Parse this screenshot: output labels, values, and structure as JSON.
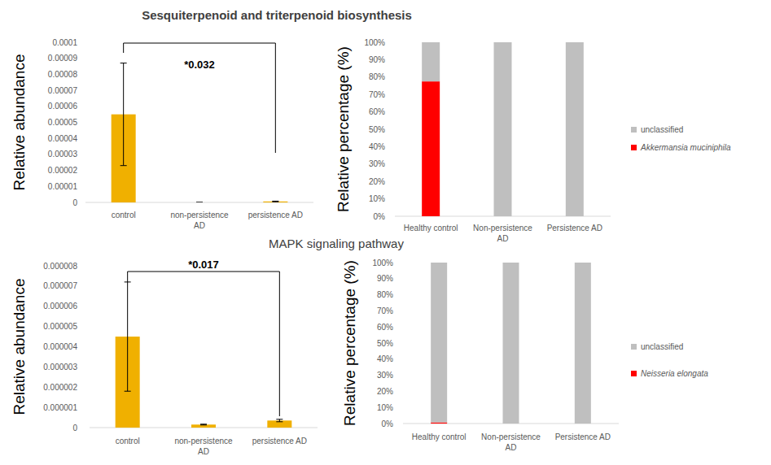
{
  "chart_data": [
    {
      "type": "bar",
      "title": "Sesquiterpenoid and triterpenoid biosynthesis",
      "ylabel": "Relative abundance",
      "categories": [
        "control",
        "non-persistence AD",
        "persistence AD"
      ],
      "values": [
        5.5e-05,
        0,
        6e-07
      ],
      "errors": [
        3.2e-05,
        0,
        2e-07
      ],
      "color": "#f0b000",
      "ylim": [
        0,
        0.0001
      ],
      "yticks": [
        0,
        1e-05,
        2e-05,
        3e-05,
        4e-05,
        5e-05,
        6e-05,
        7e-05,
        8e-05,
        9e-05,
        0.0001
      ],
      "grid": false,
      "annotations": [
        {
          "text": "*0.032",
          "between": [
            "control",
            "persistence AD"
          ]
        }
      ]
    },
    {
      "type": "bar",
      "stacked": true,
      "ylabel": "Relative percentage (%)",
      "categories": [
        "Healthy control",
        "Non-persistence AD",
        "Persistence AD"
      ],
      "series": [
        {
          "name": "Akkermansia muciniphila",
          "color": "#ff0000",
          "values": [
            77.5,
            0,
            0
          ]
        },
        {
          "name": "unclassified",
          "color": "#bfbfbf",
          "values": [
            22.5,
            100,
            100
          ]
        }
      ],
      "ylim": [
        0,
        100
      ],
      "yticks": [
        {
          "value": 0,
          "label": "0%"
        },
        {
          "value": 10,
          "label": "10%"
        },
        {
          "value": 20,
          "label": "20%"
        },
        {
          "value": 30,
          "label": "30%"
        },
        {
          "value": 40,
          "label": "40%"
        },
        {
          "value": 50,
          "label": "50%"
        },
        {
          "value": 60,
          "label": "60%"
        },
        {
          "value": 70,
          "label": "70%"
        },
        {
          "value": 80,
          "label": "80%"
        },
        {
          "value": 90,
          "label": "90%"
        },
        {
          "value": 100,
          "label": "100%"
        }
      ],
      "grid": false,
      "legend": "right"
    },
    {
      "type": "bar",
      "title": "MAPK signaling pathway",
      "ylabel": "Relative abundance",
      "categories": [
        "control",
        "non-persistence AD",
        "persistence AD"
      ],
      "values": [
        4.5e-06,
        1.5e-07,
        3.5e-07
      ],
      "errors": [
        2.7e-06,
        2e-08,
        6e-08
      ],
      "color": "#f0b000",
      "ylim": [
        0,
        8e-06
      ],
      "yticks": [
        0,
        1e-06,
        2e-06,
        3e-06,
        4e-06,
        5e-06,
        6e-06,
        7e-06,
        8e-06
      ],
      "grid": false,
      "annotations": [
        {
          "text": "*0.017",
          "between": [
            "control",
            "persistence AD"
          ]
        }
      ]
    },
    {
      "type": "bar",
      "stacked": true,
      "ylabel": "Relative percentage (%)",
      "categories": [
        "Healthy control",
        "Non-persistence AD",
        "Persistence AD"
      ],
      "series": [
        {
          "name": "Neisseria elongata",
          "color": "#ff0000",
          "values": [
            0.7,
            0,
            0
          ]
        },
        {
          "name": "unclassified",
          "color": "#bfbfbf",
          "values": [
            99.3,
            100,
            100
          ]
        }
      ],
      "ylim": [
        0,
        100
      ],
      "yticks": [
        {
          "value": 0,
          "label": "0%"
        },
        {
          "value": 10,
          "label": "10%"
        },
        {
          "value": 20,
          "label": "20%"
        },
        {
          "value": 30,
          "label": "30%"
        },
        {
          "value": 40,
          "label": "40%"
        },
        {
          "value": 50,
          "label": "50%"
        },
        {
          "value": 60,
          "label": "60%"
        },
        {
          "value": 70,
          "label": "70%"
        },
        {
          "value": 80,
          "label": "80%"
        },
        {
          "value": 90,
          "label": "90%"
        },
        {
          "value": 100,
          "label": "100%"
        }
      ],
      "grid": false,
      "legend": "right"
    }
  ]
}
